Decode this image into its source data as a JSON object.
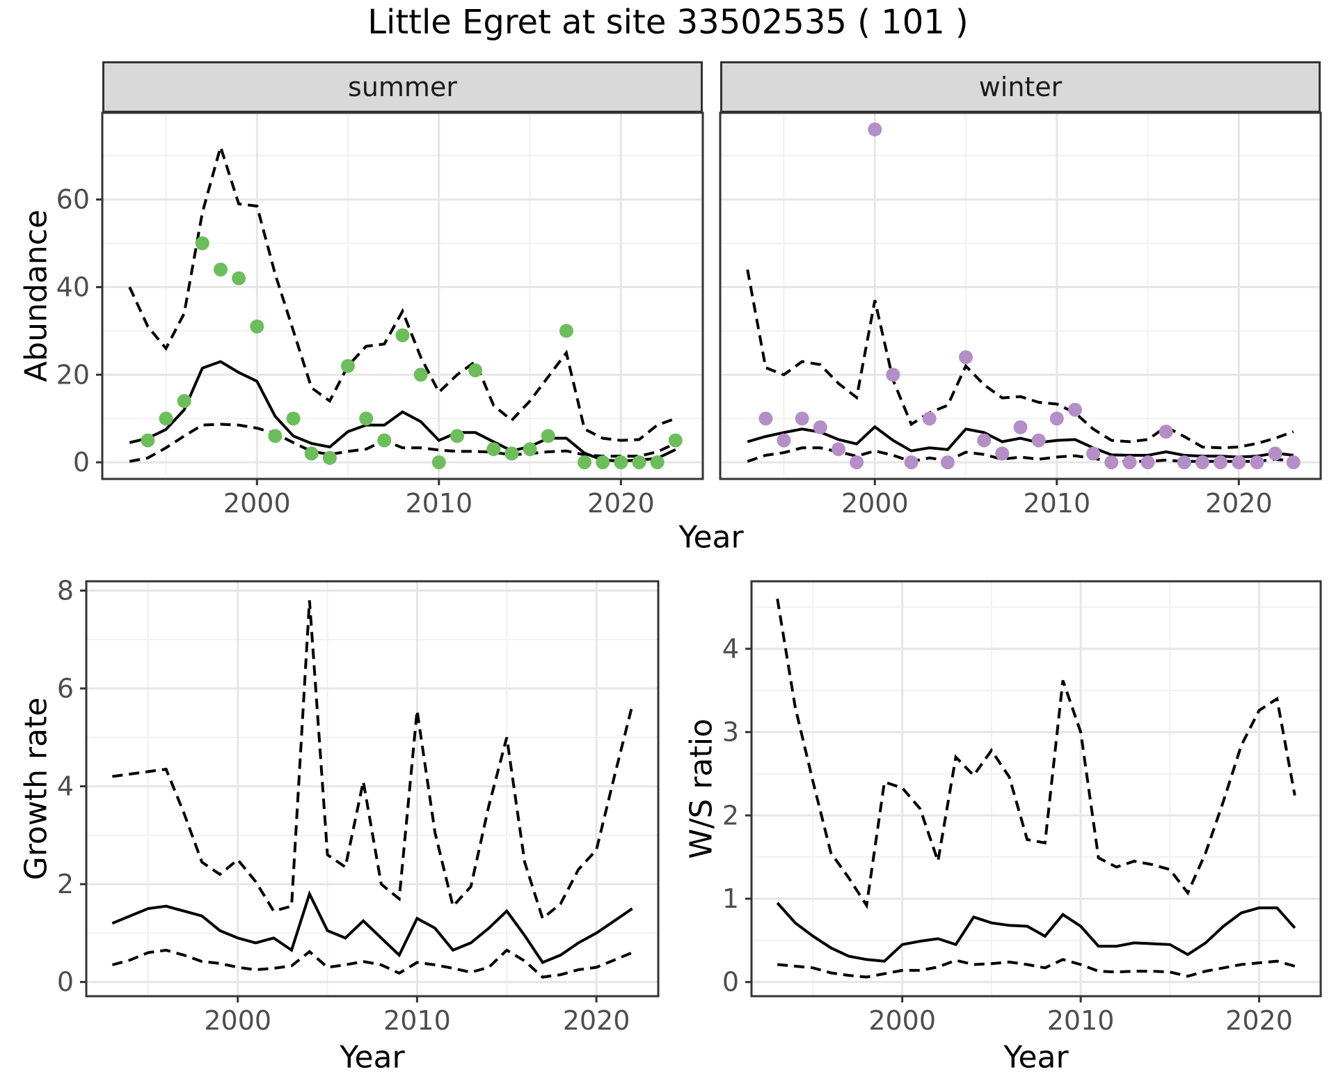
{
  "title": "Little Egret at site 33502535 ( 101 )",
  "facets": [
    {
      "label": "summer"
    },
    {
      "label": "winter"
    }
  ],
  "axes": {
    "top_y_title": "Abundance",
    "top_x_title": "Year",
    "growth_y_title": "Growth rate",
    "growth_x_title": "Year",
    "ws_y_title": "W/S ratio",
    "ws_x_title": "Year"
  },
  "colors": {
    "summer_points": "#6cbe5b",
    "winter_points": "#b48ec7",
    "line": "#000000",
    "strip_bg": "#d9d9d9",
    "panel_border": "#333333",
    "grid_major": "#e6e6e6",
    "grid_minor": "#f1f1f1",
    "tick_text": "#4d4d4d"
  },
  "chart_data": [
    {
      "id": "abundance_summer",
      "type": "scatter",
      "facet": "summer",
      "xlabel": "Year",
      "ylabel": "Abundance",
      "xlim": [
        1991.5,
        2024.5
      ],
      "ylim": [
        -3.8,
        79.8
      ],
      "x_ticks": [
        2000,
        2010,
        2020
      ],
      "x_tick_labels": [
        "2000",
        "2010",
        "2020"
      ],
      "x_minor": [
        1995,
        2005,
        2015
      ],
      "y_ticks": [
        0,
        20,
        40,
        60
      ],
      "y_tick_labels": [
        "0",
        "20",
        "40",
        "60"
      ],
      "y_minor": [
        10,
        30,
        50,
        70
      ],
      "legend_position": "none",
      "grid": true,
      "points": {
        "years": [
          1994,
          1995,
          1996,
          1997,
          1998,
          1999,
          2000,
          2001,
          2002,
          2003,
          2004,
          2005,
          2006,
          2007,
          2008,
          2009,
          2010,
          2011,
          2012,
          2013,
          2014,
          2015,
          2016,
          2017,
          2018,
          2019,
          2020,
          2021,
          2022,
          2023
        ],
        "values": [
          5,
          10,
          14,
          50,
          44,
          42,
          31,
          6,
          10,
          2,
          1,
          22,
          10,
          5,
          29,
          20,
          0,
          6,
          21,
          3,
          2,
          3,
          6,
          30,
          0,
          0,
          0,
          0,
          0,
          5
        ]
      },
      "median": {
        "years": [
          1993,
          1994,
          1995,
          1996,
          1997,
          1998,
          1999,
          2000,
          2001,
          2002,
          2003,
          2004,
          2005,
          2006,
          2007,
          2008,
          2009,
          2010,
          2011,
          2012,
          2013,
          2014,
          2015,
          2016,
          2017,
          2018,
          2019,
          2020,
          2021,
          2022,
          2023
        ],
        "values": [
          4.5,
          5.5,
          7.5,
          12,
          21.5,
          23,
          20.5,
          18.5,
          10.5,
          6,
          4.3,
          3.5,
          7,
          8.5,
          8.5,
          11.5,
          9.3,
          5,
          6.8,
          6.8,
          4.7,
          2.6,
          3.6,
          5.5,
          5.5,
          2.1,
          0.5,
          0.3,
          0.5,
          0.9,
          2.9
        ]
      },
      "ci_upper": {
        "years": [
          1993,
          1994,
          1995,
          1996,
          1997,
          1998,
          1999,
          2000,
          2001,
          2002,
          2003,
          2004,
          2005,
          2006,
          2007,
          2008,
          2009,
          2010,
          2011,
          2012,
          2013,
          2014,
          2015,
          2016,
          2017,
          2018,
          2019,
          2020,
          2021,
          2022,
          2023
        ],
        "values": [
          40,
          31,
          26,
          34,
          57,
          72,
          59,
          58.5,
          43,
          30,
          17,
          14,
          22,
          26.5,
          27,
          34.5,
          24,
          16,
          20,
          23,
          13,
          9.6,
          14,
          19.5,
          25,
          7.6,
          5.5,
          5,
          5.2,
          8.5,
          10
        ]
      },
      "ci_lower": {
        "years": [
          1993,
          1994,
          1995,
          1996,
          1997,
          1998,
          1999,
          2000,
          2001,
          2002,
          2003,
          2004,
          2005,
          2006,
          2007,
          2008,
          2009,
          2010,
          2011,
          2012,
          2013,
          2014,
          2015,
          2016,
          2017,
          2018,
          2019,
          2020,
          2021,
          2022,
          2023
        ],
        "values": [
          0.2,
          1,
          3.3,
          6,
          8.5,
          8.7,
          8.5,
          7.8,
          6.6,
          4.5,
          2.5,
          1.8,
          2.5,
          3,
          5,
          3.3,
          3.3,
          2.8,
          2.5,
          2.5,
          2.3,
          1.7,
          2,
          2.4,
          2.6,
          1.7,
          1.4,
          1.4,
          1.4,
          2.4,
          4.3
        ]
      }
    },
    {
      "id": "abundance_winter",
      "type": "scatter",
      "facet": "winter",
      "xlabel": "Year",
      "ylabel": "Abundance",
      "xlim": [
        1991.5,
        2024.5
      ],
      "ylim": [
        -3.8,
        79.8
      ],
      "x_ticks": [
        2000,
        2010,
        2020
      ],
      "x_tick_labels": [
        "2000",
        "2010",
        "2020"
      ],
      "x_minor": [
        1995,
        2005,
        2015
      ],
      "y_ticks": [
        0,
        20,
        40,
        60
      ],
      "y_tick_labels": [],
      "y_minor": [
        10,
        30,
        50,
        70
      ],
      "legend_position": "none",
      "grid": true,
      "points": {
        "years": [
          1994,
          1995,
          1996,
          1997,
          1998,
          1999,
          2000,
          2001,
          2002,
          2003,
          2004,
          2005,
          2006,
          2007,
          2008,
          2009,
          2010,
          2011,
          2012,
          2013,
          2014,
          2015,
          2016,
          2017,
          2018,
          2019,
          2020,
          2021,
          2022,
          2023
        ],
        "values": [
          10,
          5,
          10,
          8,
          3,
          0,
          76,
          20,
          0,
          10,
          0,
          24,
          5,
          2,
          8,
          5,
          10,
          12,
          2,
          0,
          0,
          0,
          7,
          0,
          0,
          0,
          0,
          0,
          2,
          0
        ]
      },
      "median": {
        "years": [
          1993,
          1994,
          1995,
          1996,
          1997,
          1998,
          1999,
          2000,
          2001,
          2002,
          2003,
          2004,
          2005,
          2006,
          2007,
          2008,
          2009,
          2010,
          2011,
          2012,
          2013,
          2014,
          2015,
          2016,
          2017,
          2018,
          2019,
          2020,
          2021,
          2022,
          2023
        ],
        "values": [
          4.7,
          5.9,
          6.8,
          7.6,
          6.9,
          5.2,
          4.2,
          8.1,
          5,
          2.6,
          3.3,
          2.9,
          7.6,
          6.8,
          4.7,
          5.5,
          4.5,
          5,
          5.2,
          3.3,
          1.7,
          1.6,
          1.6,
          2.4,
          1.6,
          1.4,
          1.4,
          1.2,
          1.4,
          2.1,
          1.6
        ]
      },
      "ci_upper": {
        "years": [
          1993,
          1994,
          1995,
          1996,
          1997,
          1998,
          1999,
          2000,
          2001,
          2002,
          2003,
          2004,
          2005,
          2006,
          2007,
          2008,
          2009,
          2010,
          2011,
          2012,
          2013,
          2014,
          2015,
          2016,
          2017,
          2018,
          2019,
          2020,
          2021,
          2022,
          2023
        ],
        "values": [
          44,
          21.6,
          20,
          23,
          22.3,
          18,
          14.8,
          37,
          18.8,
          8.7,
          11.3,
          13,
          22,
          17.7,
          14.7,
          15,
          13.7,
          13.3,
          11.3,
          7.6,
          5,
          4.7,
          5.2,
          8.1,
          5.9,
          3.5,
          3.3,
          3.5,
          4.3,
          5.5,
          7
        ]
      },
      "ci_lower": {
        "years": [
          1993,
          1994,
          1995,
          1996,
          1997,
          1998,
          1999,
          2000,
          2001,
          2002,
          2003,
          2004,
          2005,
          2006,
          2007,
          2008,
          2009,
          2010,
          2011,
          2012,
          2013,
          2014,
          2015,
          2016,
          2017,
          2018,
          2019,
          2020,
          2021,
          2022,
          2023
        ],
        "values": [
          0.2,
          1.6,
          2.2,
          3.3,
          3.3,
          2.4,
          1.4,
          2.6,
          1.6,
          0.2,
          1,
          0.4,
          2.3,
          1.8,
          0.7,
          1.2,
          0.7,
          1.2,
          1.5,
          0.9,
          0.2,
          0.2,
          0.2,
          0.5,
          0.2,
          0.2,
          0.2,
          0.2,
          0.2,
          0.7,
          0.3
        ]
      }
    },
    {
      "id": "growth_rate",
      "type": "line",
      "xlabel": "Year",
      "ylabel": "Growth rate",
      "xlim": [
        1991.55,
        2023.45
      ],
      "ylim": [
        -0.29,
        8.19
      ],
      "x_ticks": [
        2000,
        2010,
        2020
      ],
      "x_tick_labels": [
        "2000",
        "2010",
        "2020"
      ],
      "x_minor": [
        1995,
        2005,
        2015
      ],
      "y_ticks": [
        0,
        2,
        4,
        6,
        8
      ],
      "y_tick_labels": [
        "0",
        "2",
        "4",
        "6",
        "8"
      ],
      "y_minor": [
        1,
        3,
        5,
        7
      ],
      "legend_position": "none",
      "grid": true,
      "median": {
        "years": [
          1993,
          1994,
          1995,
          1996,
          1997,
          1998,
          1999,
          2000,
          2001,
          2002,
          2003,
          2004,
          2005,
          2006,
          2007,
          2008,
          2009,
          2010,
          2011,
          2012,
          2013,
          2014,
          2015,
          2016,
          2017,
          2018,
          2019,
          2020,
          2021,
          2022
        ],
        "values": [
          1.2,
          1.35,
          1.5,
          1.55,
          1.45,
          1.35,
          1.05,
          0.9,
          0.8,
          0.9,
          0.65,
          1.8,
          1.05,
          0.9,
          1.25,
          0.9,
          0.55,
          1.3,
          1.1,
          0.65,
          0.8,
          1.1,
          1.45,
          0.95,
          0.4,
          0.55,
          0.8,
          1.0,
          1.25,
          1.5
        ]
      },
      "ci_upper": {
        "years": [
          1993,
          1994,
          1995,
          1996,
          1997,
          1998,
          1999,
          2000,
          2001,
          2002,
          2003,
          2004,
          2005,
          2006,
          2007,
          2008,
          2009,
          2010,
          2011,
          2012,
          2013,
          2014,
          2015,
          2016,
          2017,
          2018,
          2019,
          2020,
          2021,
          2022
        ],
        "values": [
          4.2,
          4.25,
          4.3,
          4.35,
          3.45,
          2.45,
          2.2,
          2.5,
          2.05,
          1.45,
          1.55,
          7.8,
          2.6,
          2.35,
          4.1,
          2.0,
          1.7,
          5.55,
          3.05,
          1.55,
          1.95,
          3.6,
          5.0,
          2.45,
          1.3,
          1.6,
          2.3,
          2.7,
          4.2,
          5.65
        ]
      },
      "ci_lower": {
        "years": [
          1993,
          1994,
          1995,
          1996,
          1997,
          1998,
          1999,
          2000,
          2001,
          2002,
          2003,
          2004,
          2005,
          2006,
          2007,
          2008,
          2009,
          2010,
          2011,
          2012,
          2013,
          2014,
          2015,
          2016,
          2017,
          2018,
          2019,
          2020,
          2021,
          2022
        ],
        "values": [
          0.35,
          0.45,
          0.6,
          0.65,
          0.55,
          0.42,
          0.38,
          0.3,
          0.25,
          0.28,
          0.33,
          0.62,
          0.3,
          0.35,
          0.42,
          0.35,
          0.18,
          0.4,
          0.35,
          0.28,
          0.2,
          0.3,
          0.65,
          0.43,
          0.1,
          0.15,
          0.25,
          0.3,
          0.45,
          0.6
        ]
      }
    },
    {
      "id": "ws_ratio",
      "type": "line",
      "xlabel": "Year",
      "ylabel": "W/S ratio",
      "xlim": [
        1991.55,
        2023.45
      ],
      "ylim": [
        -0.17,
        4.81
      ],
      "x_ticks": [
        2000,
        2010,
        2020
      ],
      "x_tick_labels": [
        "2000",
        "2010",
        "2020"
      ],
      "x_minor": [
        1995,
        2005,
        2015
      ],
      "y_ticks": [
        0,
        1,
        2,
        3,
        4
      ],
      "y_tick_labels": [
        "0",
        "1",
        "2",
        "3",
        "4"
      ],
      "y_minor": [
        0.5,
        1.5,
        2.5,
        3.5,
        4.5
      ],
      "legend_position": "none",
      "grid": true,
      "median": {
        "years": [
          1993,
          1994,
          1995,
          1996,
          1997,
          1998,
          1999,
          2000,
          2001,
          2002,
          2003,
          2004,
          2005,
          2006,
          2007,
          2008,
          2009,
          2010,
          2011,
          2012,
          2013,
          2014,
          2015,
          2016,
          2017,
          2018,
          2019,
          2020,
          2021,
          2022
        ],
        "values": [
          0.95,
          0.71,
          0.55,
          0.41,
          0.31,
          0.27,
          0.25,
          0.45,
          0.49,
          0.52,
          0.45,
          0.78,
          0.71,
          0.68,
          0.67,
          0.55,
          0.81,
          0.67,
          0.43,
          0.43,
          0.47,
          0.46,
          0.45,
          0.33,
          0.47,
          0.67,
          0.83,
          0.89,
          0.89,
          0.65
        ]
      },
      "ci_upper": {
        "years": [
          1993,
          1994,
          1995,
          1996,
          1997,
          1998,
          1999,
          2000,
          2001,
          2002,
          2003,
          2004,
          2005,
          2006,
          2007,
          2008,
          2009,
          2010,
          2011,
          2012,
          2013,
          2014,
          2015,
          2016,
          2017,
          2018,
          2019,
          2020,
          2021,
          2022
        ],
        "values": [
          4.6,
          3.3,
          2.4,
          1.55,
          1.25,
          0.92,
          2.4,
          2.33,
          2.08,
          1.45,
          2.7,
          2.48,
          2.78,
          2.46,
          1.71,
          1.67,
          3.62,
          3.0,
          1.49,
          1.38,
          1.45,
          1.41,
          1.35,
          1.07,
          1.55,
          2.17,
          2.84,
          3.26,
          3.4,
          2.24
        ]
      },
      "ci_lower": {
        "years": [
          1993,
          1994,
          1995,
          1996,
          1997,
          1998,
          1999,
          2000,
          2001,
          2002,
          2003,
          2004,
          2005,
          2006,
          2007,
          2008,
          2009,
          2010,
          2011,
          2012,
          2013,
          2014,
          2015,
          2016,
          2017,
          2018,
          2019,
          2020,
          2021,
          2022
        ],
        "values": [
          0.21,
          0.19,
          0.17,
          0.11,
          0.08,
          0.06,
          0.1,
          0.14,
          0.14,
          0.18,
          0.26,
          0.21,
          0.22,
          0.24,
          0.21,
          0.17,
          0.27,
          0.21,
          0.13,
          0.12,
          0.13,
          0.13,
          0.12,
          0.07,
          0.13,
          0.17,
          0.21,
          0.23,
          0.25,
          0.19
        ]
      }
    }
  ]
}
